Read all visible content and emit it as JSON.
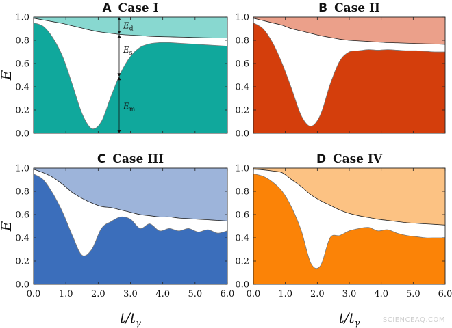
{
  "chart_data": [
    {
      "type": "area",
      "letter": "A",
      "title": "Case I",
      "colors": {
        "dark": "#10a89c",
        "light": "#88d8d0"
      },
      "xlim": [
        0,
        6
      ],
      "ylim": [
        0,
        1
      ],
      "x": [
        0,
        0.3,
        0.6,
        0.9,
        1.2,
        1.5,
        1.8,
        2.1,
        2.4,
        2.7,
        3.0,
        3.3,
        3.6,
        3.9,
        4.2,
        4.5,
        4.8,
        5.1,
        5.4,
        5.7,
        6.0
      ],
      "lower": [
        0.95,
        0.92,
        0.82,
        0.66,
        0.42,
        0.17,
        0.04,
        0.1,
        0.32,
        0.52,
        0.66,
        0.74,
        0.77,
        0.78,
        0.78,
        0.775,
        0.77,
        0.765,
        0.76,
        0.755,
        0.75
      ],
      "upper": [
        0.99,
        0.975,
        0.96,
        0.945,
        0.925,
        0.905,
        0.885,
        0.87,
        0.86,
        0.85,
        0.845,
        0.84,
        0.835,
        0.832,
        0.83,
        0.828,
        0.826,
        0.824,
        0.822,
        0.821,
        0.82
      ],
      "annotations": {
        "ed": "E",
        "ed_sub": "d",
        "es": "E",
        "es_sub": "s",
        "em": "E",
        "em_sub": "m"
      }
    },
    {
      "type": "area",
      "letter": "B",
      "title": "Case II",
      "colors": {
        "dark": "#d43e0c",
        "light": "#eba08a"
      },
      "xlim": [
        0,
        6
      ],
      "ylim": [
        0,
        1
      ],
      "x": [
        0,
        0.3,
        0.6,
        0.9,
        1.2,
        1.5,
        1.8,
        2.1,
        2.4,
        2.7,
        3.0,
        3.3,
        3.6,
        3.9,
        4.2,
        4.5,
        4.8,
        5.1,
        5.4,
        5.7,
        6.0
      ],
      "lower": [
        0.95,
        0.9,
        0.78,
        0.6,
        0.38,
        0.15,
        0.06,
        0.16,
        0.42,
        0.62,
        0.7,
        0.71,
        0.72,
        0.715,
        0.72,
        0.715,
        0.71,
        0.71,
        0.705,
        0.7,
        0.7
      ],
      "upper": [
        0.99,
        0.97,
        0.95,
        0.93,
        0.9,
        0.88,
        0.86,
        0.84,
        0.825,
        0.81,
        0.8,
        0.795,
        0.79,
        0.785,
        0.78,
        0.778,
        0.775,
        0.772,
        0.77,
        0.768,
        0.765
      ]
    },
    {
      "type": "area",
      "letter": "C",
      "title": "Case III",
      "colors": {
        "dark": "#3b6ebb",
        "light": "#9db4da"
      },
      "xlim": [
        0,
        6
      ],
      "ylim": [
        0,
        1
      ],
      "x": [
        0,
        0.3,
        0.6,
        0.9,
        1.2,
        1.5,
        1.8,
        2.1,
        2.4,
        2.7,
        3.0,
        3.3,
        3.6,
        3.9,
        4.2,
        4.5,
        4.8,
        5.1,
        5.4,
        5.7,
        6.0
      ],
      "lower": [
        0.95,
        0.9,
        0.78,
        0.62,
        0.42,
        0.25,
        0.3,
        0.48,
        0.54,
        0.58,
        0.56,
        0.48,
        0.52,
        0.46,
        0.48,
        0.46,
        0.48,
        0.45,
        0.47,
        0.44,
        0.46
      ],
      "upper": [
        0.99,
        0.96,
        0.92,
        0.86,
        0.79,
        0.74,
        0.7,
        0.67,
        0.66,
        0.64,
        0.62,
        0.6,
        0.59,
        0.58,
        0.58,
        0.57,
        0.565,
        0.56,
        0.555,
        0.55,
        0.545
      ]
    },
    {
      "type": "area",
      "letter": "D",
      "title": "Case IV",
      "colors": {
        "dark": "#fb8307",
        "light": "#fcc283"
      },
      "xlim": [
        0,
        6
      ],
      "ylim": [
        0,
        1
      ],
      "x": [
        0,
        0.3,
        0.6,
        0.9,
        1.2,
        1.5,
        1.8,
        2.1,
        2.4,
        2.7,
        3.0,
        3.3,
        3.6,
        3.9,
        4.2,
        4.5,
        4.8,
        5.1,
        5.4,
        5.7,
        6.0
      ],
      "lower": [
        0.95,
        0.93,
        0.88,
        0.8,
        0.66,
        0.46,
        0.18,
        0.16,
        0.4,
        0.42,
        0.46,
        0.48,
        0.49,
        0.46,
        0.47,
        0.44,
        0.42,
        0.41,
        0.4,
        0.4,
        0.4
      ],
      "upper": [
        0.99,
        0.985,
        0.975,
        0.96,
        0.9,
        0.84,
        0.77,
        0.72,
        0.68,
        0.64,
        0.61,
        0.59,
        0.575,
        0.56,
        0.55,
        0.54,
        0.53,
        0.525,
        0.52,
        0.515,
        0.51
      ]
    }
  ],
  "axes": {
    "y_label": "E",
    "x_label": "t/t",
    "x_label_sub": "γ",
    "x_ticks": [
      "0.0",
      "1.0",
      "2.0",
      "3.0",
      "4.0",
      "5.0",
      "6.0"
    ],
    "y_ticks": [
      "0.0",
      "0.2",
      "0.4",
      "0.6",
      "0.8",
      "1.0"
    ]
  },
  "watermark": "SCIENCEAQ.COM"
}
